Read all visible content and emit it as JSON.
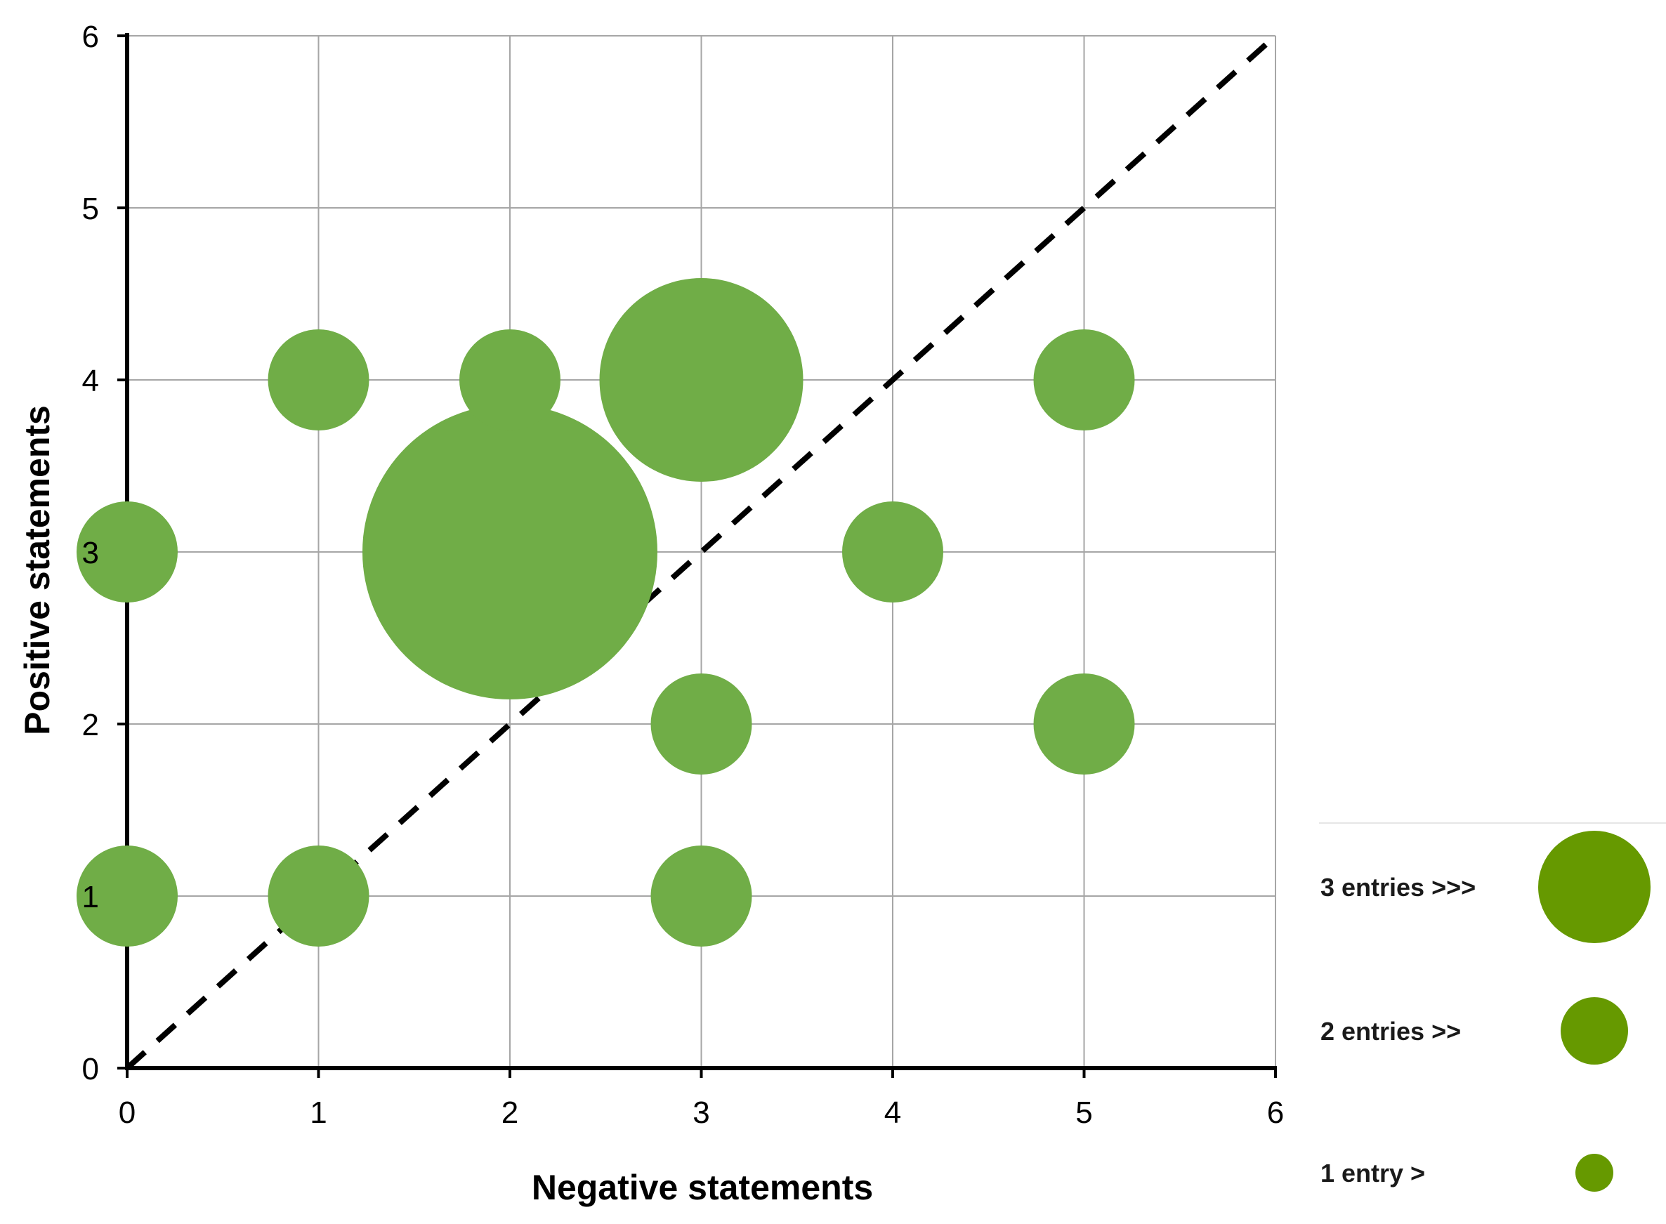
{
  "chart_data": {
    "type": "bubble",
    "title": "",
    "xlabel": "Negative statements",
    "ylabel": "Positive statements",
    "xlim": [
      0,
      6
    ],
    "ylim": [
      0,
      6
    ],
    "xticks": [
      "0",
      "1",
      "2",
      "3",
      "4",
      "5",
      "6"
    ],
    "yticks": [
      "0",
      "1",
      "2",
      "3",
      "4",
      "5",
      "6"
    ],
    "grid": true,
    "reference_line": {
      "style": "dashed",
      "from": [
        0,
        0
      ],
      "to": [
        6,
        6
      ]
    },
    "series": [
      {
        "name": "entries",
        "color": "#70ad47",
        "points": [
          {
            "x": 0,
            "y": 1,
            "size": 1
          },
          {
            "x": 1,
            "y": 1,
            "size": 1
          },
          {
            "x": 3,
            "y": 1,
            "size": 1
          },
          {
            "x": 3,
            "y": 2,
            "size": 1
          },
          {
            "x": 5,
            "y": 2,
            "size": 1
          },
          {
            "x": 0,
            "y": 3,
            "size": 1
          },
          {
            "x": 2,
            "y": 3,
            "size": 3
          },
          {
            "x": 4,
            "y": 3,
            "size": 1
          },
          {
            "x": 1,
            "y": 4,
            "size": 1
          },
          {
            "x": 2,
            "y": 4,
            "size": 1
          },
          {
            "x": 3,
            "y": 4,
            "size": 2
          },
          {
            "x": 5,
            "y": 4,
            "size": 1
          }
        ]
      }
    ],
    "legend": {
      "placement": "bottom-right",
      "color": "#669900",
      "items": [
        {
          "label": "3 entries >>>",
          "size": 3
        },
        {
          "label": "2 entries >>",
          "size": 2
        },
        {
          "label": "1 entry >",
          "size": 1
        }
      ]
    }
  }
}
